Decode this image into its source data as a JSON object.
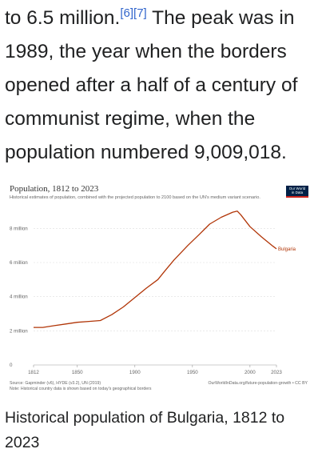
{
  "article": {
    "line1_text": "to 6.5 million.",
    "ref1": "[6]",
    "ref2": "[7]",
    "line1_rest": " The peak was in 1989, the year when the borders opened after a half of a century of communist regime, when the population numbered 9,009,018."
  },
  "figure": {
    "caption": "Historical population of Bulgaria, 1812 to 2023",
    "source_left": "Source: Gapminder (v6), HYDE (v3.2), UN (2019)",
    "note_left": "Note: Historical country data is shown based on today's geographical borders",
    "source_right": "OurWorldInData.org/future-population-growth • CC BY",
    "logo_line1": "Our World",
    "logo_line2": "in Data"
  },
  "chart_data": {
    "type": "line",
    "title": "Population, 1812 to 2023",
    "subtitle": "Historical estimates of population, combined with the projected population to 2100 based on the UN's medium variant scenario.",
    "xlabel": "",
    "ylabel": "",
    "xlim": [
      1812,
      2023
    ],
    "ylim": [
      0,
      9000000
    ],
    "x_ticks": [
      "1812",
      "1850",
      "1900",
      "1950",
      "2000",
      "2023"
    ],
    "y_ticks": [
      "0",
      "2 million",
      "4 million",
      "6 million",
      "8 million"
    ],
    "grid": true,
    "series": [
      {
        "name": "Bulgaria",
        "color": "#b13507",
        "x": [
          1812,
          1820,
          1830,
          1840,
          1850,
          1860,
          1870,
          1880,
          1890,
          1900,
          1910,
          1920,
          1926,
          1934,
          1946,
          1956,
          1965,
          1975,
          1985,
          1989,
          1992,
          2000,
          2010,
          2020,
          2023
        ],
        "y": [
          2200000,
          2200000,
          2300000,
          2400000,
          2500000,
          2550000,
          2600000,
          2950000,
          3400000,
          3950000,
          4500000,
          5000000,
          5500000,
          6150000,
          7000000,
          7650000,
          8250000,
          8650000,
          8950000,
          9009018,
          8800000,
          8100000,
          7500000,
          6950000,
          6800000
        ]
      }
    ]
  }
}
